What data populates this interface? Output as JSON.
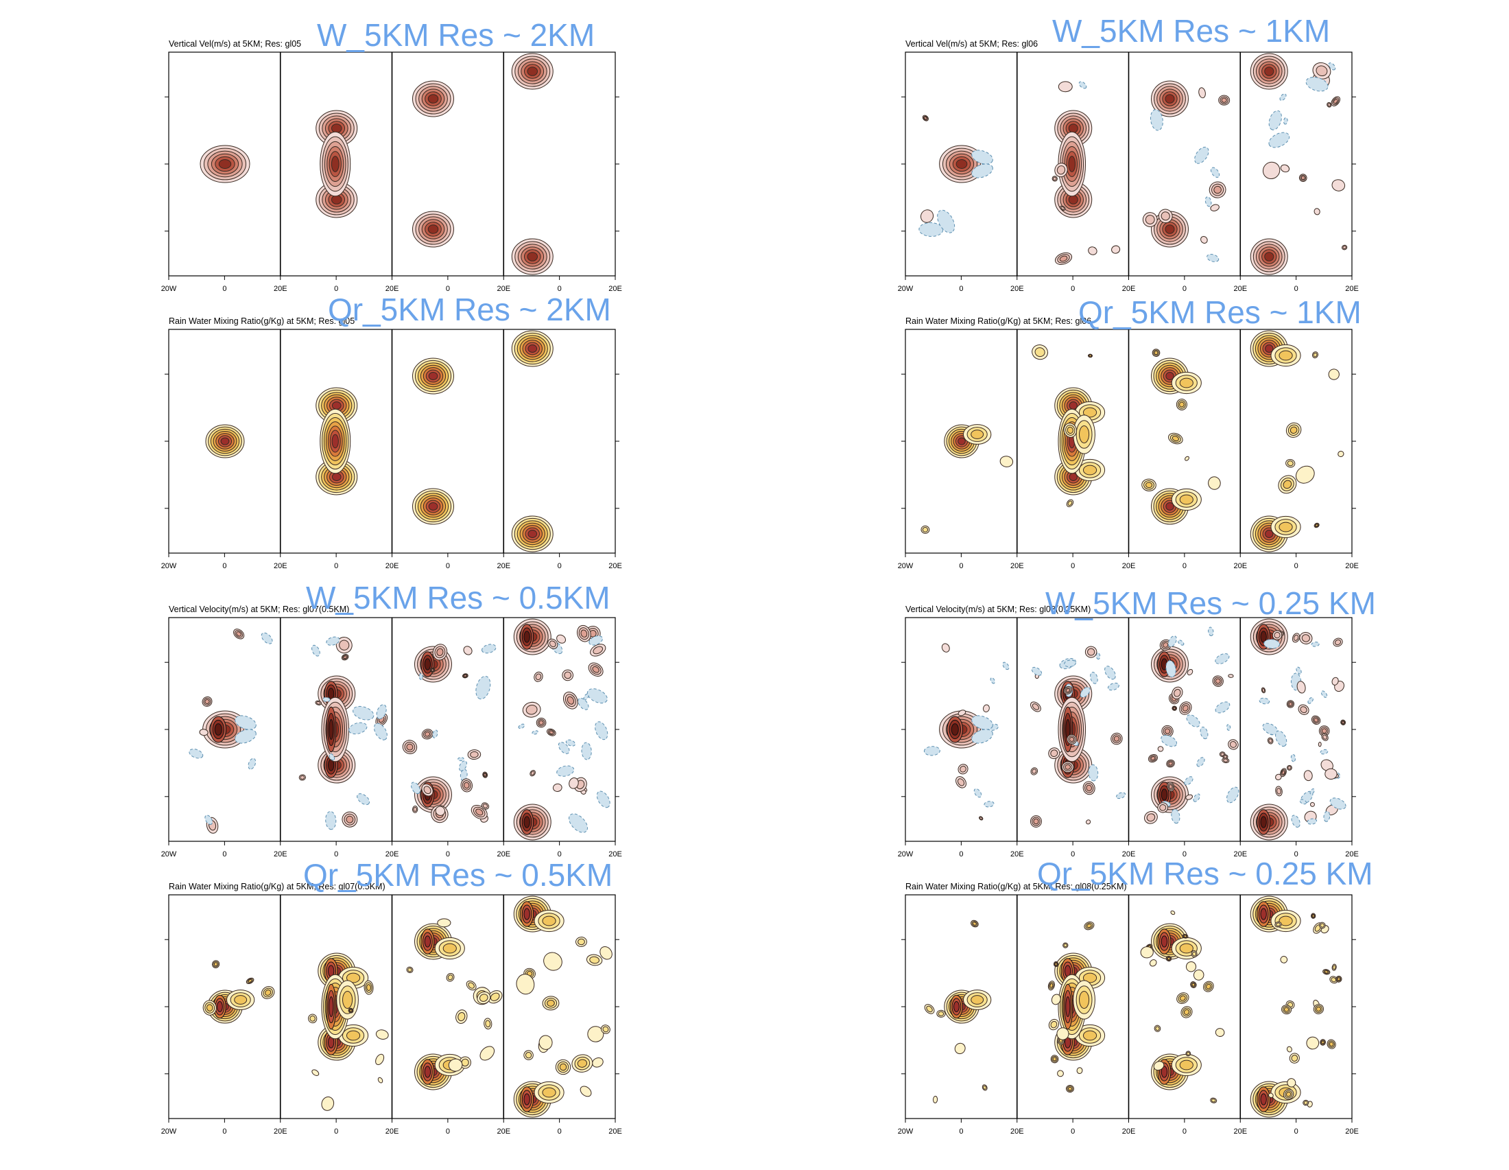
{
  "panels": [
    {
      "small_title": "Vertical Vel(m/s) at 5KM; Res: gl05",
      "overlay_title": "W_5KM  Res ~ 2KM",
      "variable": "w",
      "detail": 1,
      "x_ticks": [
        "20W",
        "0",
        "20E",
        "0",
        "20E",
        "0",
        "20E",
        "0",
        "20E"
      ]
    },
    {
      "small_title": "Vertical Vel(m/s) at 5KM; Res: gl06",
      "overlay_title": "W_5KM  Res ~ 1KM",
      "variable": "w",
      "detail": 2,
      "x_ticks": [
        "20W",
        "0",
        "20E",
        "0",
        "20E",
        "0",
        "20E",
        "0",
        "20E"
      ]
    },
    {
      "small_title": "Rain Water Mixing Ratio(g/Kg) at 5KM; Res: gl05",
      "overlay_title": "Qr_5KM  Res ~ 2KM",
      "variable": "qr",
      "detail": 1,
      "x_ticks": [
        "20W",
        "0",
        "20E",
        "0",
        "20E",
        "0",
        "20E",
        "0",
        "20E"
      ]
    },
    {
      "small_title": "Rain Water Mixing Ratio(g/Kg) at 5KM; Res: gl06",
      "overlay_title": "Qr_5KM Res ~ 1KM",
      "variable": "qr",
      "detail": 2,
      "x_ticks": [
        "20W",
        "0",
        "20E",
        "0",
        "20E",
        "0",
        "20E",
        "0",
        "20E"
      ]
    },
    {
      "small_title": "Vertical Velocity(m/s) at 5KM; Res: gl07(0.5KM)",
      "overlay_title": "W_5KM  Res ~ 0.5KM",
      "variable": "w",
      "detail": 3,
      "x_ticks": [
        "20W",
        "0",
        "20E",
        "0",
        "20E",
        "0",
        "20E",
        "0",
        "20E"
      ]
    },
    {
      "small_title": "Vertical Velocity(m/s) at 5KM; Res: gl08(0.25KM)",
      "overlay_title": "W_5KM Res ~ 0.25 KM",
      "variable": "w",
      "detail": 4,
      "x_ticks": [
        "20W",
        "0",
        "20E",
        "0",
        "20E",
        "0",
        "20E",
        "0",
        "20E"
      ]
    },
    {
      "small_title": "Rain Water Mixing Ratio(g/Kg) at 5KM; Res: gl07(0.5KM)",
      "overlay_title": "Qr_5KM  Res ~ 0.5KM",
      "variable": "qr",
      "detail": 3,
      "x_ticks": [
        "20W",
        "0",
        "20E",
        "0",
        "20E",
        "0",
        "20E",
        "0",
        "20E"
      ]
    },
    {
      "small_title": "Rain Water Mixing Ratio(g/Kg) at 5KM; Res: gl08(0.25KM)",
      "overlay_title": "Qr_5KM Res ~ 0.25 KM",
      "variable": "qr",
      "detail": 4,
      "x_ticks": [
        "20W",
        "0",
        "20E",
        "0",
        "20E",
        "0",
        "20E",
        "0",
        "20E"
      ]
    }
  ],
  "colors": {
    "w_positive": [
      "#f3dcd8",
      "#e9c1b8",
      "#dea193",
      "#cf7d6a",
      "#b95542",
      "#8e2f22",
      "#5e1a12"
    ],
    "w_negative": "#cfe2ee",
    "w_negative_line": "#5c8fb0",
    "qr_levels": [
      "#fdf2c8",
      "#f8e08c",
      "#f1c45c",
      "#e7a246",
      "#d9793a",
      "#c0503a",
      "#9c2f2b"
    ],
    "overlay_text": "#6aa3ea"
  },
  "chart_data": [
    {
      "type": "contour",
      "title": "Vertical Vel(m/s) at 5KM; Res: gl05",
      "xlabel_ticks": [
        "20W",
        "0",
        "20E"
      ],
      "subpanels": 4
    },
    {
      "type": "contour",
      "title": "Vertical Vel(m/s) at 5KM; Res: gl06",
      "xlabel_ticks": [
        "20W",
        "0",
        "20E"
      ],
      "subpanels": 4
    },
    {
      "type": "contour",
      "title": "Rain Water Mixing Ratio(g/Kg) at 5KM; Res: gl05",
      "xlabel_ticks": [
        "20W",
        "0",
        "20E"
      ],
      "subpanels": 4
    },
    {
      "type": "contour",
      "title": "Rain Water Mixing Ratio(g/Kg) at 5KM; Res: gl06",
      "xlabel_ticks": [
        "20W",
        "0",
        "20E"
      ],
      "subpanels": 4
    },
    {
      "type": "contour",
      "title": "Vertical Velocity(m/s) at 5KM; Res: gl07(0.5KM)",
      "xlabel_ticks": [
        "20W",
        "0",
        "20E"
      ],
      "subpanels": 4
    },
    {
      "type": "contour",
      "title": "Vertical Velocity(m/s) at 5KM; Res: gl08(0.25KM)",
      "xlabel_ticks": [
        "20W",
        "0",
        "20E"
      ],
      "subpanels": 4
    },
    {
      "type": "contour",
      "title": "Rain Water Mixing Ratio(g/Kg) at 5KM; Res: gl07(0.5KM)",
      "xlabel_ticks": [
        "20W",
        "0",
        "20E"
      ],
      "subpanels": 4
    },
    {
      "type": "contour",
      "title": "Rain Water Mixing Ratio(g/Kg) at 5KM; Res: gl08(0.25KM)",
      "xlabel_ticks": [
        "20W",
        "0",
        "20E"
      ],
      "subpanels": 4
    }
  ]
}
